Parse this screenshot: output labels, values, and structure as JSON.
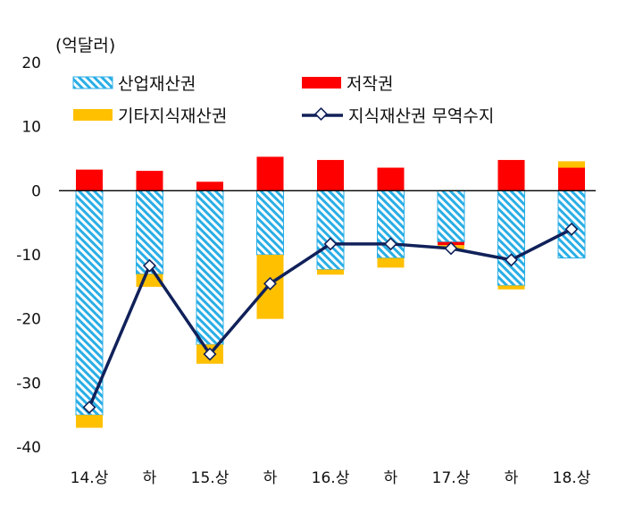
{
  "chart_data": {
    "type": "bar",
    "unit_label": "(억달러)",
    "categories": [
      "14.상",
      "하",
      "15.상",
      "하",
      "16.상",
      "하",
      "17.상",
      "하",
      "18.상"
    ],
    "ylim": [
      -40,
      20
    ],
    "yticks": [
      20,
      10,
      0,
      -10,
      -20,
      -30,
      -40
    ],
    "series": [
      {
        "name": "산업재산권",
        "kind": "bar",
        "color": "#29aee6",
        "values": [
          -35.0,
          -13.0,
          -24.0,
          -10.0,
          -12.3,
          -10.5,
          -8.0,
          -14.8,
          -10.5
        ]
      },
      {
        "name": "저작권",
        "kind": "bar",
        "color": "#ff0000",
        "values": [
          3.3,
          3.1,
          1.4,
          5.3,
          4.8,
          3.6,
          -0.5,
          4.8,
          3.6
        ]
      },
      {
        "name": "기타지식재산권",
        "kind": "bar",
        "color": "#ffc000",
        "values": [
          -2.0,
          -2.0,
          -3.0,
          -10.0,
          -0.8,
          -1.5,
          -0.6,
          -0.6,
          1.0
        ]
      },
      {
        "name": "지식재산권 무역수지",
        "kind": "line",
        "color": "#10215a",
        "values": [
          -33.8,
          -11.7,
          -25.5,
          -14.5,
          -8.3,
          -8.3,
          -9.0,
          -10.8,
          -6.0
        ]
      }
    ]
  }
}
